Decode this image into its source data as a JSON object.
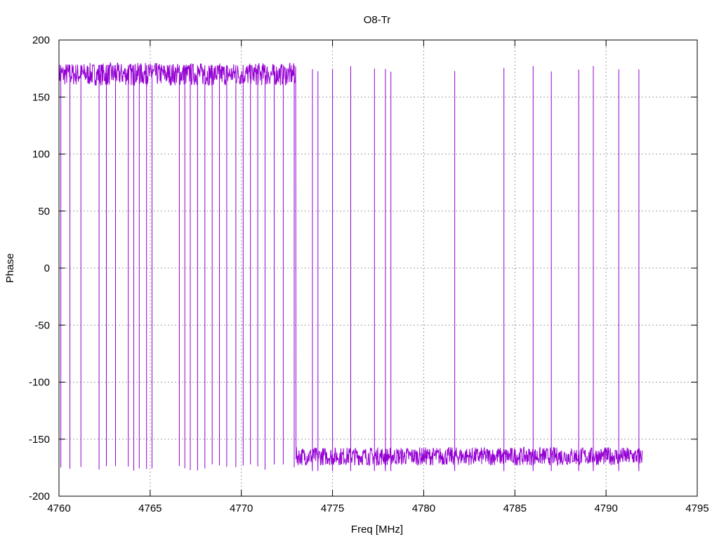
{
  "chart_data": {
    "type": "line",
    "title": "O8-Tr",
    "xlabel": "Freq [MHz]",
    "ylabel": "Phase",
    "xlim": [
      4760,
      4795
    ],
    "ylim": [
      -200,
      200
    ],
    "x_ticks": [
      4760,
      4765,
      4770,
      4775,
      4780,
      4785,
      4790,
      4795
    ],
    "y_ticks": [
      -200,
      -150,
      -100,
      -50,
      0,
      50,
      100,
      150,
      200
    ],
    "grid": true,
    "legend": "none",
    "series_color": "#9400d3",
    "x_range_of_data": [
      4760.0,
      4792.0
    ],
    "segments": [
      {
        "x_start": 4760.0,
        "x_end": 4773.0,
        "phase_level": 170
      },
      {
        "x_start": 4773.0,
        "x_end": 4792.0,
        "phase_level": -165
      }
    ],
    "phase_wrap_frequencies": [
      4760.1,
      4760.6,
      4761.2,
      4762.2,
      4762.6,
      4763.1,
      4763.8,
      4764.1,
      4764.4,
      4764.8,
      4765.1,
      4766.6,
      4766.9,
      4767.2,
      4767.6,
      4768.0,
      4768.4,
      4768.8,
      4769.2,
      4769.7,
      4770.1,
      4770.5,
      4770.9,
      4771.3,
      4771.8,
      4772.3,
      4772.9,
      4773.9,
      4774.2,
      4775.0,
      4776.0,
      4777.3,
      4777.9,
      4778.2,
      4781.7,
      4784.4,
      4786.0,
      4787.0,
      4788.5,
      4789.3,
      4790.7,
      4791.8
    ]
  }
}
